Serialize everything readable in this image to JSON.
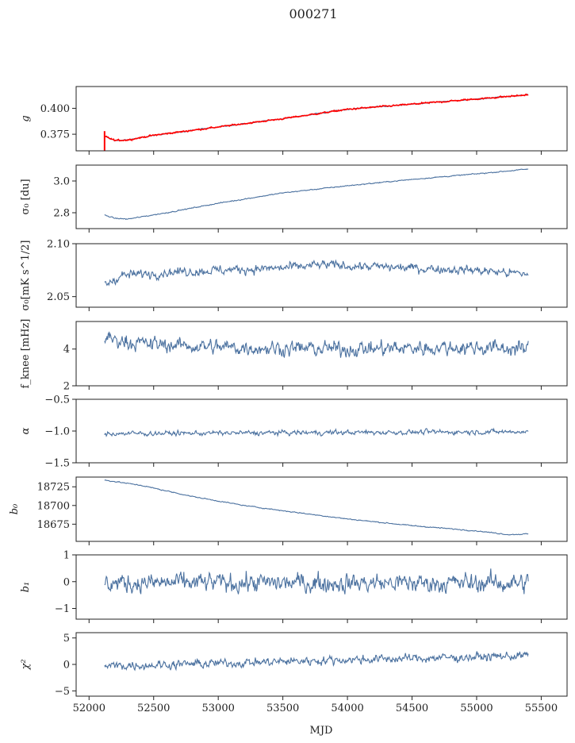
{
  "figure": {
    "title": "000271"
  },
  "chart_data": {
    "type": "line",
    "title": "000271",
    "xlabel": "MJD",
    "xlim": [
      51900,
      55700
    ],
    "x_ticks": [
      52000,
      52500,
      53000,
      53500,
      54000,
      54500,
      55000,
      55500
    ],
    "x_tick_labels": [
      "52000",
      "52500",
      "53000",
      "53500",
      "54000",
      "54500",
      "55000",
      "55500"
    ],
    "x_range": [
      52120,
      55400
    ],
    "series_color": "#4c72a0",
    "overlay_color": "#ff0000",
    "panels": [
      {
        "id": "g",
        "ylabel": "g",
        "ylim": [
          0.359,
          0.421
        ],
        "yticks": [
          0.375,
          0.4
        ],
        "ytick_labels": [
          "0.375",
          "0.400"
        ],
        "trend": [
          [
            52120,
            0.373
          ],
          [
            52200,
            0.369
          ],
          [
            52300,
            0.3695
          ],
          [
            52500,
            0.374
          ],
          [
            53000,
            0.382
          ],
          [
            53500,
            0.39
          ],
          [
            54000,
            0.399
          ],
          [
            54500,
            0.404
          ],
          [
            55000,
            0.409
          ],
          [
            55400,
            0.413
          ]
        ],
        "noise": 0.0005,
        "overlay": true
      },
      {
        "id": "sigma-du",
        "ylabel": "σ₀ [du]",
        "ylim": [
          2.7,
          3.1
        ],
        "yticks": [
          2.8,
          3.0
        ],
        "ytick_labels": [
          "2.8",
          "3.0"
        ],
        "trend": [
          [
            52120,
            2.785
          ],
          [
            52200,
            2.765
          ],
          [
            52300,
            2.76
          ],
          [
            52600,
            2.8
          ],
          [
            53000,
            2.86
          ],
          [
            53500,
            2.925
          ],
          [
            54000,
            2.97
          ],
          [
            54500,
            3.01
          ],
          [
            55000,
            3.045
          ],
          [
            55400,
            3.075
          ]
        ],
        "noise": 0.003
      },
      {
        "id": "sigma-mk",
        "ylabel": "σ₀[mK s^1/2]",
        "ylim": [
          2.04,
          2.1
        ],
        "yticks": [
          2.05,
          2.1
        ],
        "ytick_labels": [
          "2.05",
          "2.10"
        ],
        "trend": [
          [
            52120,
            2.061
          ],
          [
            52250,
            2.07
          ],
          [
            52600,
            2.073
          ],
          [
            53000,
            2.075
          ],
          [
            53500,
            2.077
          ],
          [
            53800,
            2.08
          ],
          [
            54500,
            2.077
          ],
          [
            55000,
            2.075
          ],
          [
            55400,
            2.071
          ]
        ],
        "noise": 0.004
      },
      {
        "id": "fknee",
        "ylabel": "f_knee [mHz]",
        "ylim": [
          2,
          5.5
        ],
        "yticks": [
          2,
          4
        ],
        "ytick_labels": [
          "2",
          "4"
        ],
        "trend": [
          [
            52120,
            4.6
          ],
          [
            52400,
            4.3
          ],
          [
            53000,
            4.1
          ],
          [
            54000,
            4.0
          ],
          [
            55000,
            4.1
          ],
          [
            55400,
            4.0
          ]
        ],
        "noise": 0.38
      },
      {
        "id": "alpha",
        "ylabel": "α",
        "ylim": [
          -1.5,
          -0.5
        ],
        "yticks": [
          -1.5,
          -1.0,
          -0.5
        ],
        "ytick_labels": [
          "−1.5",
          "−1.0",
          "−0.5"
        ],
        "trend": [
          [
            52120,
            -1.04
          ],
          [
            55400,
            -1.01
          ]
        ],
        "noise": 0.035
      },
      {
        "id": "b0",
        "ylabel": "b₀",
        "ylim": [
          18652,
          18738
        ],
        "yticks": [
          18675,
          18700,
          18725
        ],
        "ytick_labels": [
          "18675",
          "18700",
          "18725"
        ],
        "trend": [
          [
            52120,
            18734
          ],
          [
            52400,
            18727
          ],
          [
            52800,
            18712
          ],
          [
            53200,
            18700
          ],
          [
            53500,
            18693
          ],
          [
            54000,
            18682
          ],
          [
            54500,
            18673
          ],
          [
            55000,
            18666
          ],
          [
            55250,
            18661
          ],
          [
            55400,
            18662
          ]
        ],
        "noise": 0.6
      },
      {
        "id": "b1",
        "ylabel": "b₁",
        "ylim": [
          -1.4,
          1.0
        ],
        "yticks": [
          -1,
          0,
          1
        ],
        "ytick_labels": [
          "−1",
          "0",
          "1"
        ],
        "trend": [
          [
            52120,
            -0.05
          ],
          [
            55400,
            -0.05
          ]
        ],
        "noise": 0.33
      },
      {
        "id": "chi2",
        "ylabel": "χ²",
        "ylim": [
          -6,
          6
        ],
        "yticks": [
          -5,
          0,
          5
        ],
        "ytick_labels": [
          "−5",
          "0",
          "5"
        ],
        "trend": [
          [
            52120,
            -0.3
          ],
          [
            53000,
            0.2
          ],
          [
            54000,
            0.9
          ],
          [
            55000,
            1.4
          ],
          [
            55400,
            1.7
          ]
        ],
        "noise": 0.75
      }
    ]
  }
}
